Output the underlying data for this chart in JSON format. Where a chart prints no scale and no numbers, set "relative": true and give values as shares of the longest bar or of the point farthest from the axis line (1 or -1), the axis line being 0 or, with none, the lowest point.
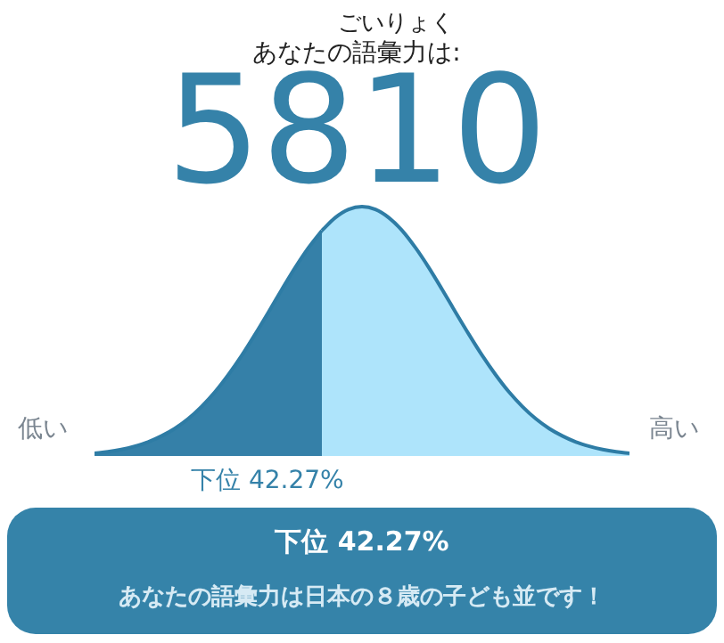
{
  "chart_data": {
    "type": "area",
    "title": "あなたの語彙力は:",
    "relative": true,
    "annotations": [
      "ごいりょく",
      "5810",
      "低い",
      "高い",
      "下位 42.27%",
      "下位 42.27%",
      "あなたの語彙力は日本の８歳の子ども並です！"
    ],
    "categories": [
      null,
      null,
      null,
      null,
      null,
      null,
      null,
      null,
      null,
      null,
      null,
      null,
      null,
      null,
      null,
      null,
      null,
      null,
      null,
      null,
      null,
      null,
      null,
      null,
      null,
      null,
      null,
      null,
      null,
      null,
      null,
      null,
      null,
      null,
      null,
      null,
      null,
      null,
      null,
      null,
      null
    ],
    "series": [
      {
        "color": "#3580a8",
        "values": [
          0.011,
          0.017,
          0.026,
          0.039,
          0.056,
          0.08,
          0.11,
          0.149,
          0.198,
          0.256,
          0.325,
          0.402,
          0.487,
          0.576,
          0.667,
          0.755,
          0.835,
          0.904,
          null,
          null,
          null,
          null,
          null,
          null,
          null,
          null,
          null,
          null,
          null,
          null,
          null,
          null,
          null,
          null,
          null,
          null,
          null,
          null,
          null,
          null,
          null
        ]
      },
      {
        "color": "#aee4fb",
        "values": [
          null,
          null,
          null,
          null,
          null,
          null,
          null,
          null,
          null,
          null,
          null,
          null,
          null,
          null,
          null,
          null,
          null,
          0.904,
          0.956,
          0.989,
          1,
          0.989,
          0.956,
          0.904,
          0.835,
          0.755,
          0.667,
          0.576,
          0.487,
          0.402,
          0.325,
          0.256,
          0.198,
          0.149,
          0.11,
          0.08,
          0.056,
          0.039,
          0.026,
          0.017,
          0.011
        ]
      }
    ]
  }
}
